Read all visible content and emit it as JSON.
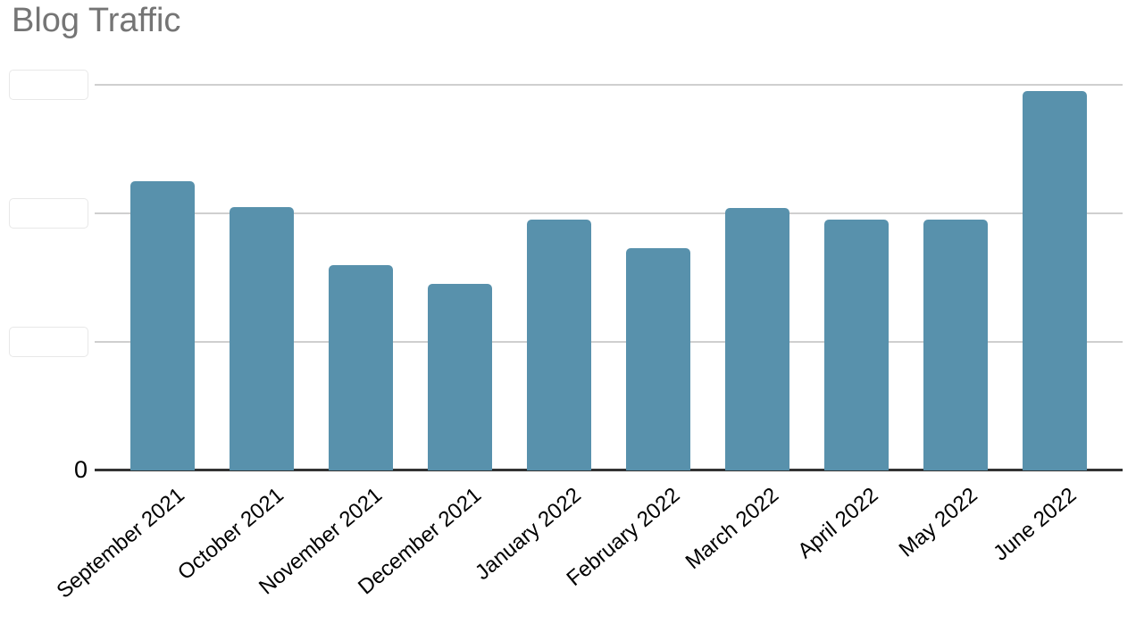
{
  "title": "Blog Traffic",
  "y_axis": {
    "zero_label": "0",
    "redacted_tick_labels": 3,
    "note": "the three upper y-axis tick labels are covered by blank white boxes; only the 0 label is visible"
  },
  "colors": {
    "bar": "#5891ac",
    "title_text": "#757575",
    "gridline": "#cfcfcf",
    "axis_line": "#333333",
    "tick_text": "#000000",
    "background": "#ffffff",
    "redaction_box_border": "#e8e8e8"
  },
  "chart_data": {
    "type": "bar",
    "title": "Blog Traffic",
    "categories": [
      "September 2021",
      "October 2021",
      "November 2021",
      "December 2021",
      "January 2022",
      "February 2022",
      "March 2022",
      "April 2022",
      "May 2022",
      "June 2022"
    ],
    "values": [
      2.25,
      2.05,
      1.6,
      1.45,
      1.95,
      1.73,
      2.04,
      1.95,
      1.95,
      2.95
    ],
    "value_units": "gridline intervals (numeric y tick labels are redacted; only '0' is visible)",
    "gridline_units": [
      1,
      2,
      3
    ],
    "ylim": [
      0,
      3.02
    ],
    "xlabel": "",
    "ylabel": "",
    "legend": "none",
    "grid": "horizontal only",
    "x_tick_rotation_deg": -40,
    "bar_color": "#5891ac"
  }
}
